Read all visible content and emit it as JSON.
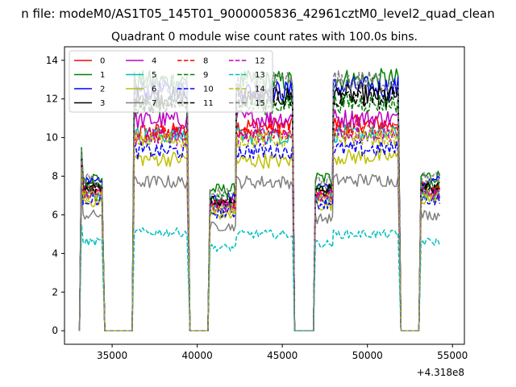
{
  "chart_data": {
    "type": "line",
    "suptitle": "n file: modeM0/AS1T05_145T01_9000005836_42961cztM0_level2_quad_clean",
    "title": "Quadrant 0 module wise count rates with 100.0s bins.",
    "xlabel": "",
    "ylabel": "",
    "x_offset_label": "+4.318e8",
    "xlim": [
      32200,
      55700
    ],
    "ylim": [
      -0.7,
      14.7
    ],
    "xticks": [
      35000,
      40000,
      45000,
      50000,
      55000
    ],
    "xtick_labels": [
      "35000",
      "40000",
      "45000",
      "50000",
      "55000"
    ],
    "yticks": [
      0,
      2,
      4,
      6,
      8,
      10,
      12,
      14
    ],
    "ytick_labels": [
      "0",
      "2",
      "4",
      "6",
      "8",
      "10",
      "12",
      "14"
    ],
    "legend_position": "top-left",
    "segments": [
      {
        "start": 33200,
        "end": 34450
      },
      {
        "start": 36300,
        "end": 39450
      },
      {
        "start": 40750,
        "end": 42250
      },
      {
        "start": 42300,
        "end": 45600
      },
      {
        "start": 46950,
        "end": 48000
      },
      {
        "start": 48000,
        "end": 51850
      },
      {
        "start": 53150,
        "end": 54250
      }
    ],
    "series": [
      {
        "name": "0",
        "color": "#ff0000",
        "dash": "solid",
        "levels": [
          7.3,
          10.3,
          6.6,
          10.6,
          7.1,
          10.7,
          7.4
        ]
      },
      {
        "name": "1",
        "color": "#008000",
        "dash": "solid",
        "levels": [
          7.9,
          12.9,
          7.3,
          12.9,
          7.9,
          13.0,
          8.0
        ]
      },
      {
        "name": "2",
        "color": "#0000ff",
        "dash": "solid",
        "levels": [
          7.6,
          12.4,
          6.9,
          12.4,
          7.5,
          12.6,
          7.7
        ]
      },
      {
        "name": "3",
        "color": "#000000",
        "dash": "solid",
        "levels": [
          7.4,
          12.1,
          6.7,
          12.1,
          7.3,
          12.2,
          7.4
        ]
      },
      {
        "name": "4",
        "color": "#bf00bf",
        "dash": "solid",
        "levels": [
          7.3,
          10.9,
          6.6,
          11.0,
          7.1,
          11.0,
          7.3
        ]
      },
      {
        "name": "5",
        "color": "#00bfbf",
        "dash": "solid",
        "levels": [
          7.0,
          10.1,
          6.4,
          10.1,
          6.9,
          10.2,
          7.1
        ]
      },
      {
        "name": "6",
        "color": "#bfbf00",
        "dash": "solid",
        "levels": [
          6.7,
          8.9,
          6.0,
          8.8,
          6.5,
          9.0,
          6.8
        ]
      },
      {
        "name": "7",
        "color": "#808080",
        "dash": "solid",
        "levels": [
          6.0,
          7.7,
          5.4,
          7.7,
          5.8,
          7.8,
          6.0
        ]
      },
      {
        "name": "8",
        "color": "#ff0000",
        "dash": "dash",
        "levels": [
          7.2,
          10.2,
          6.5,
          10.3,
          7.0,
          10.4,
          7.2
        ]
      },
      {
        "name": "9",
        "color": "#008000",
        "dash": "dash",
        "levels": [
          7.5,
          11.7,
          6.8,
          11.7,
          7.4,
          11.8,
          7.5
        ]
      },
      {
        "name": "10",
        "color": "#0000ff",
        "dash": "dash",
        "levels": [
          6.8,
          9.3,
          6.1,
          9.3,
          6.6,
          9.4,
          6.8
        ]
      },
      {
        "name": "11",
        "color": "#000000",
        "dash": "dash",
        "levels": [
          7.4,
          11.8,
          6.7,
          11.9,
          7.3,
          12.0,
          7.4
        ]
      },
      {
        "name": "12",
        "color": "#bf00bf",
        "dash": "dash",
        "levels": [
          7.1,
          10.0,
          6.4,
          10.1,
          6.9,
          10.2,
          7.1
        ]
      },
      {
        "name": "13",
        "color": "#00bfbf",
        "dash": "dash",
        "levels": [
          4.6,
          5.1,
          4.3,
          5.0,
          4.5,
          5.0,
          4.6
        ]
      },
      {
        "name": "14",
        "color": "#bfbf00",
        "dash": "dash",
        "levels": [
          7.0,
          9.9,
          6.3,
          9.9,
          6.8,
          10.0,
          7.0
        ]
      },
      {
        "name": "15",
        "color": "#808080",
        "dash": "dash",
        "levels": [
          7.8,
          12.7,
          7.1,
          12.8,
          7.7,
          12.9,
          7.9
        ]
      }
    ]
  }
}
